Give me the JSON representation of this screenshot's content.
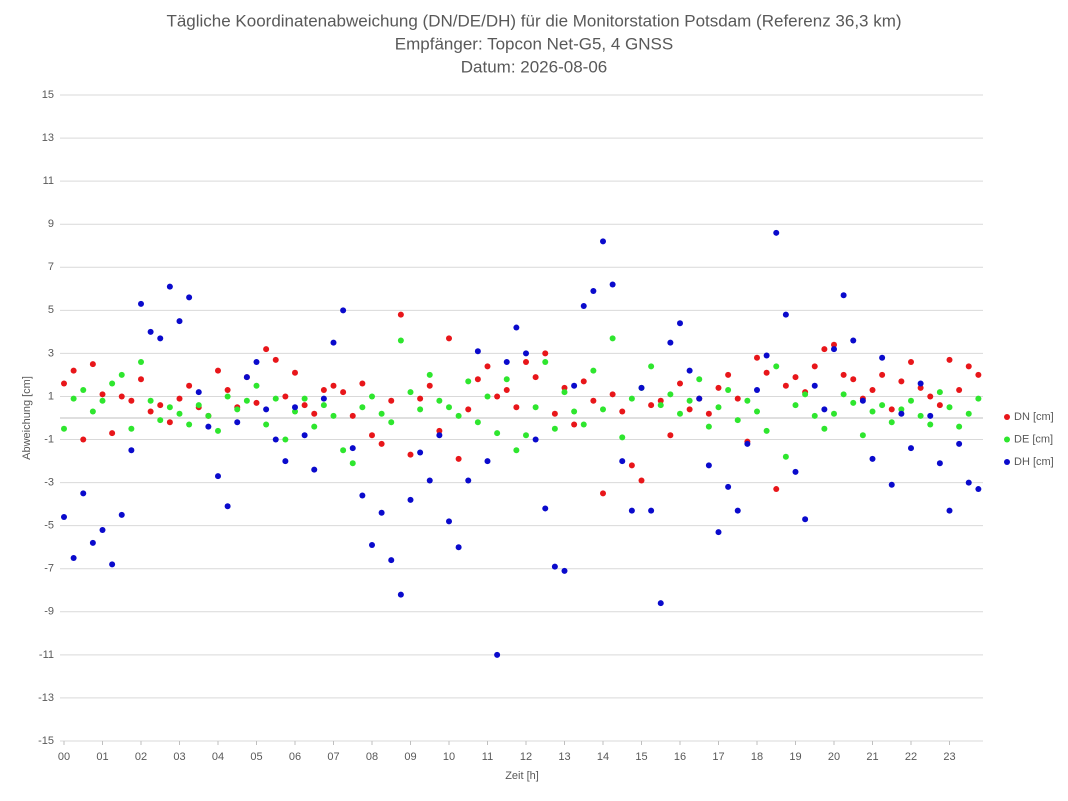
{
  "chart_data": {
    "type": "scatter",
    "title": "Tägliche Koordinatenabweichung (DN/DE/DH) für die Monitorstation Potsdam (Referenz 36,3 km)",
    "subtitle": "Empfänger: Topcon Net-G5, 4 GNSS",
    "date_line": "Datum: 2026-08-06",
    "x_label": "Zeit [h]",
    "y_label": "Abweichung [cm]",
    "xlim": [
      0,
      24
    ],
    "ylim": [
      -15,
      15
    ],
    "xticks": [
      {
        "value": 0,
        "label": "00"
      },
      {
        "value": 1,
        "label": "01"
      },
      {
        "value": 2,
        "label": "02"
      },
      {
        "value": 3,
        "label": "03"
      },
      {
        "value": 4,
        "label": "04"
      },
      {
        "value": 5,
        "label": "05"
      },
      {
        "value": 6,
        "label": "06"
      },
      {
        "value": 7,
        "label": "07"
      },
      {
        "value": 8,
        "label": "08"
      },
      {
        "value": 9,
        "label": "09"
      },
      {
        "value": 10,
        "label": "10"
      },
      {
        "value": 11,
        "label": "11"
      },
      {
        "value": 12,
        "label": "12"
      },
      {
        "value": 13,
        "label": "13"
      },
      {
        "value": 14,
        "label": "14"
      },
      {
        "value": 15,
        "label": "15"
      },
      {
        "value": 16,
        "label": "16"
      },
      {
        "value": 17,
        "label": "17"
      },
      {
        "value": 18,
        "label": "18"
      },
      {
        "value": 19,
        "label": "19"
      },
      {
        "value": 20,
        "label": "20"
      },
      {
        "value": 21,
        "label": "21"
      },
      {
        "value": 22,
        "label": "22"
      },
      {
        "value": 23,
        "label": "23"
      }
    ],
    "yticks": [
      15,
      13,
      11,
      9,
      7,
      5,
      3,
      1,
      -1,
      -3,
      -5,
      -7,
      -9,
      -11,
      -13,
      -15
    ],
    "grid": true,
    "legend": "right",
    "x": [
      0,
      0.25,
      0.5,
      0.75,
      1,
      1.25,
      1.5,
      1.75,
      2,
      2.25,
      2.5,
      2.75,
      3,
      3.25,
      3.5,
      3.75,
      4,
      4.25,
      4.5,
      4.75,
      5,
      5.25,
      5.5,
      5.75,
      6,
      6.25,
      6.5,
      6.75,
      7,
      7.25,
      7.5,
      7.75,
      8,
      8.25,
      8.5,
      8.75,
      9,
      9.25,
      9.5,
      9.75,
      10,
      10.25,
      10.5,
      10.75,
      11,
      11.25,
      11.5,
      11.75,
      12,
      12.25,
      12.5,
      12.75,
      13,
      13.25,
      13.5,
      13.75,
      14,
      14.25,
      14.5,
      14.75,
      15,
      15.25,
      15.5,
      15.75,
      16,
      16.25,
      16.5,
      16.75,
      17,
      17.25,
      17.5,
      17.75,
      18,
      18.25,
      18.5,
      18.75,
      19,
      19.25,
      19.5,
      19.75,
      20,
      20.25,
      20.5,
      20.75,
      21,
      21.25,
      21.5,
      21.75,
      22,
      22.25,
      22.5,
      22.75,
      23,
      23.25,
      23.5,
      23.75
    ],
    "series": [
      {
        "name": "DN [cm]",
        "color": "#e8161a",
        "values": [
          1.6,
          2.2,
          -1.0,
          2.5,
          1.1,
          -0.7,
          1.0,
          0.8,
          1.8,
          0.3,
          0.6,
          -0.2,
          0.9,
          1.5,
          0.5,
          0.1,
          2.2,
          1.3,
          0.5,
          1.9,
          0.7,
          3.2,
          2.7,
          1.0,
          2.1,
          0.6,
          0.2,
          1.3,
          1.5,
          1.2,
          0.1,
          1.6,
          -0.8,
          -1.2,
          0.8,
          4.8,
          -1.7,
          0.9,
          1.5,
          -0.6,
          3.7,
          -1.9,
          0.4,
          1.8,
          2.4,
          1.0,
          1.3,
          0.5,
          2.6,
          1.9,
          3.0,
          0.2,
          1.4,
          -0.3,
          1.7,
          0.8,
          -3.5,
          1.1,
          0.3,
          -2.2,
          -2.9,
          0.6,
          0.8,
          -0.8,
          1.6,
          0.4,
          0.9,
          0.2,
          1.4,
          2.0,
          0.9,
          -1.1,
          2.8,
          2.1,
          -3.3,
          1.5,
          1.9,
          1.2,
          2.4,
          3.2,
          3.4,
          2.0,
          1.8,
          0.9,
          1.3,
          2.0,
          0.4,
          1.7,
          2.6,
          1.4,
          1.0,
          0.6,
          2.7,
          1.3,
          2.4,
          2.0
        ]
      },
      {
        "name": "DE [cm]",
        "color": "#2ee62e",
        "values": [
          -0.5,
          0.9,
          1.3,
          0.3,
          0.8,
          1.6,
          2.0,
          -0.5,
          2.6,
          0.8,
          -0.1,
          0.5,
          0.2,
          -0.3,
          0.6,
          0.1,
          -0.6,
          1.0,
          0.4,
          0.8,
          1.5,
          -0.3,
          0.9,
          -1.0,
          0.3,
          0.9,
          -0.4,
          0.6,
          0.1,
          -1.5,
          -2.1,
          0.5,
          1.0,
          0.2,
          -0.2,
          3.6,
          1.2,
          0.4,
          2.0,
          0.8,
          0.5,
          0.1,
          1.7,
          -0.2,
          1.0,
          -0.7,
          1.8,
          -1.5,
          -0.8,
          0.5,
          2.6,
          -0.5,
          1.2,
          0.3,
          -0.3,
          2.2,
          0.4,
          3.7,
          -0.9,
          0.9,
          1.4,
          2.4,
          0.6,
          1.1,
          0.2,
          0.8,
          1.8,
          -0.4,
          0.5,
          1.3,
          -0.1,
          0.8,
          0.3,
          -0.6,
          2.4,
          -1.8,
          0.6,
          1.1,
          0.1,
          -0.5,
          0.2,
          1.1,
          0.7,
          -0.8,
          0.3,
          0.6,
          -0.2,
          0.4,
          0.8,
          0.1,
          -0.3,
          1.2,
          0.5,
          -0.4,
          0.2,
          0.9
        ]
      },
      {
        "name": "DH [cm]",
        "color": "#0a0acc",
        "values": [
          -4.6,
          -6.5,
          -3.5,
          -5.8,
          -5.2,
          -6.8,
          -4.5,
          -1.5,
          5.3,
          4.0,
          3.7,
          6.1,
          4.5,
          5.6,
          1.2,
          -0.4,
          -2.7,
          -4.1,
          -0.2,
          1.9,
          2.6,
          0.4,
          -1.0,
          -2.0,
          0.5,
          -0.8,
          -2.4,
          0.9,
          3.5,
          5.0,
          -1.4,
          -3.6,
          -5.9,
          -4.4,
          -6.6,
          -8.2,
          -3.8,
          -1.6,
          -2.9,
          -0.8,
          -4.8,
          -6.0,
          -2.9,
          3.1,
          -2.0,
          -11.0,
          2.6,
          4.2,
          3.0,
          -1.0,
          -4.2,
          -6.9,
          -7.1,
          1.5,
          5.2,
          5.9,
          8.2,
          6.2,
          -2.0,
          -4.3,
          1.4,
          -4.3,
          -8.6,
          3.5,
          4.4,
          2.2,
          0.9,
          -2.2,
          -5.3,
          -3.2,
          -4.3,
          -1.2,
          1.3,
          2.9,
          8.6,
          4.8,
          -2.5,
          -4.7,
          1.5,
          0.4,
          3.2,
          5.7,
          3.6,
          0.8,
          -1.9,
          2.8,
          -3.1,
          0.2,
          -1.4,
          1.6,
          0.1,
          -2.1,
          -4.3,
          -1.2,
          -3.0,
          -3.3
        ]
      }
    ]
  }
}
